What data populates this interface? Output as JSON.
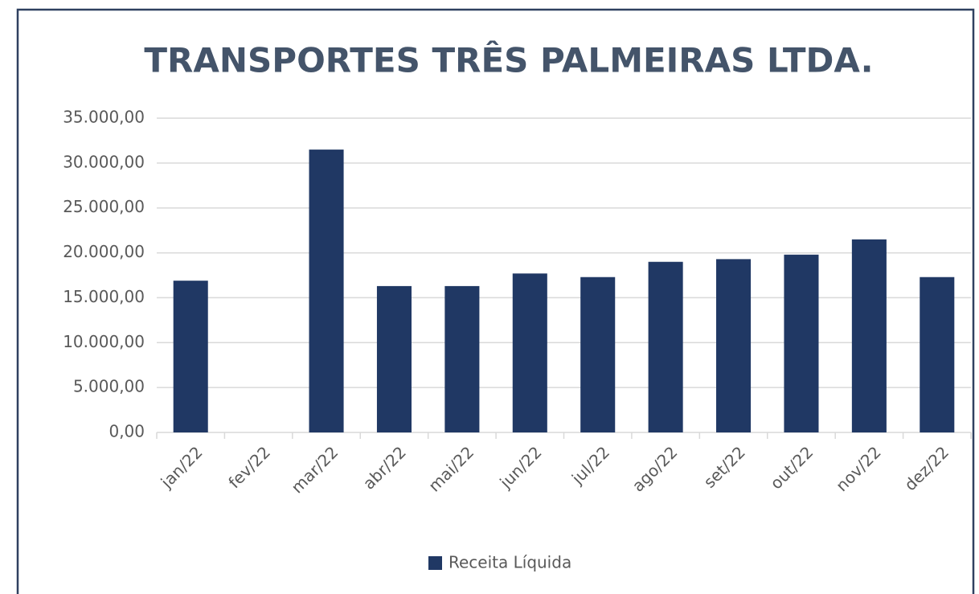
{
  "chart_data": {
    "type": "bar",
    "title": "TRANSPORTES TRÊS PALMEIRAS LTDA.",
    "categories": [
      "jan/22",
      "fev/22",
      "mar/22",
      "abr/22",
      "mai/22",
      "jun/22",
      "jul/22",
      "ago/22",
      "set/22",
      "out/22",
      "nov/22",
      "dez/22"
    ],
    "series": [
      {
        "name": "Receita Líquida",
        "color": "#203864",
        "values": [
          16900,
          0,
          31500,
          16300,
          16300,
          17700,
          17300,
          19000,
          19300,
          19800,
          21500,
          17300
        ]
      }
    ],
    "ylim": [
      0,
      35000
    ],
    "yticks": [
      {
        "value": 0,
        "label": "0,00"
      },
      {
        "value": 5000,
        "label": "5.000,00"
      },
      {
        "value": 10000,
        "label": "10.000,00"
      },
      {
        "value": 15000,
        "label": "15.000,00"
      },
      {
        "value": 20000,
        "label": "20.000,00"
      },
      {
        "value": 25000,
        "label": "25.000,00"
      },
      {
        "value": 30000,
        "label": "30.000,00"
      },
      {
        "value": 35000,
        "label": "35.000,00"
      }
    ],
    "grid": true,
    "legend": "bottom"
  }
}
